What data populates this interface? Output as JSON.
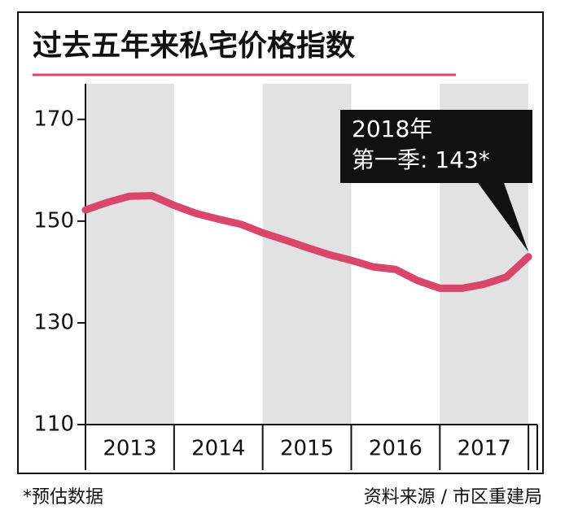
{
  "chart_data": {
    "type": "line",
    "title": "过去五年来私宅价格指数",
    "x": [
      2013.0,
      2013.25,
      2013.5,
      2013.75,
      2014.0,
      2014.25,
      2014.5,
      2014.75,
      2015.0,
      2015.25,
      2015.5,
      2015.75,
      2016.0,
      2016.25,
      2016.5,
      2016.75,
      2017.0,
      2017.25,
      2017.5,
      2017.75,
      2018.0
    ],
    "series": [
      {
        "name": "私宅价格指数",
        "color": "#d9456b",
        "values": [
          152.2,
          153.7,
          154.9,
          155.0,
          153.1,
          151.5,
          150.4,
          149.4,
          147.7,
          146.3,
          144.8,
          143.4,
          142.3,
          141.0,
          140.5,
          138.3,
          136.8,
          136.8,
          137.6,
          139.0,
          143
        ]
      }
    ],
    "xlim": [
      2013,
      2018.1
    ],
    "xticks": [
      {
        "value": 2013.5,
        "label": "2013"
      },
      {
        "value": 2014.5,
        "label": "2014"
      },
      {
        "value": 2015.5,
        "label": "2015"
      },
      {
        "value": 2016.5,
        "label": "2016"
      },
      {
        "value": 2017.5,
        "label": "2017"
      }
    ],
    "ylim": [
      110,
      177
    ],
    "yticks": [
      110,
      130,
      150,
      170
    ],
    "annotation": [
      "2018年",
      "第一季: 143*"
    ],
    "footnote": "*预估数据",
    "source": "资料来源 / 市区重建局"
  }
}
